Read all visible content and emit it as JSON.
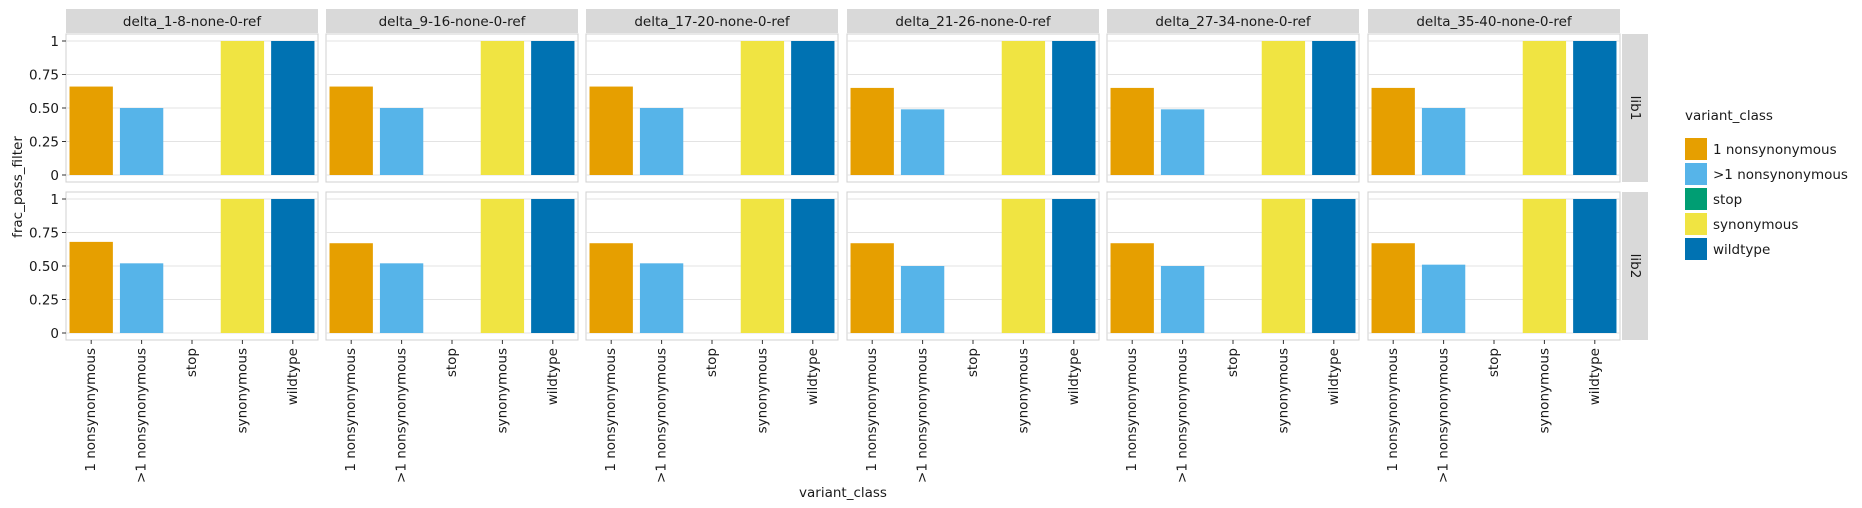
{
  "chart_data": {
    "type": "bar",
    "xlabel": "variant_class",
    "ylabel": "frac_pass_filter",
    "ylim": [
      0,
      1
    ],
    "yticks": [
      "0",
      "0.25",
      "0.50",
      "0.75",
      "1"
    ],
    "ytick_values": [
      0,
      0.25,
      0.5,
      0.75,
      1
    ],
    "grid": true,
    "legend_position": "right",
    "categories": [
      "1 nonsynonymous",
      ">1 nonsynonymous",
      "stop",
      "synonymous",
      "wildtype"
    ],
    "column_facets": [
      "delta_1-8-none-0-ref",
      "delta_9-16-none-0-ref",
      "delta_17-20-none-0-ref",
      "delta_21-26-none-0-ref",
      "delta_27-34-none-0-ref",
      "delta_35-40-none-0-ref"
    ],
    "row_facets": [
      "lib1",
      "lib2"
    ],
    "legend": {
      "title": "variant_class",
      "entries": [
        {
          "label": "1 nonsynonymous",
          "color": "#E69F00"
        },
        {
          "label": ">1 nonsynonymous",
          "color": "#56B4E9"
        },
        {
          "label": "stop",
          "color": "#009E73"
        },
        {
          "label": "synonymous",
          "color": "#F0E442"
        },
        {
          "label": "wildtype",
          "color": "#0072B2"
        }
      ]
    },
    "values": {
      "lib1": [
        [
          0.66,
          0.5,
          0,
          1.0,
          1.0
        ],
        [
          0.66,
          0.5,
          0,
          1.0,
          1.0
        ],
        [
          0.66,
          0.5,
          0,
          1.0,
          1.0
        ],
        [
          0.65,
          0.49,
          0,
          1.0,
          1.0
        ],
        [
          0.65,
          0.49,
          0,
          1.0,
          1.0
        ],
        [
          0.65,
          0.5,
          0,
          1.0,
          1.0
        ]
      ],
      "lib2": [
        [
          0.68,
          0.52,
          0,
          1.0,
          1.0
        ],
        [
          0.67,
          0.52,
          0,
          1.0,
          1.0
        ],
        [
          0.67,
          0.52,
          0,
          1.0,
          1.0
        ],
        [
          0.67,
          0.5,
          0,
          1.0,
          1.0
        ],
        [
          0.67,
          0.5,
          0,
          1.0,
          1.0
        ],
        [
          0.67,
          0.51,
          0,
          1.0,
          1.0
        ]
      ]
    }
  }
}
